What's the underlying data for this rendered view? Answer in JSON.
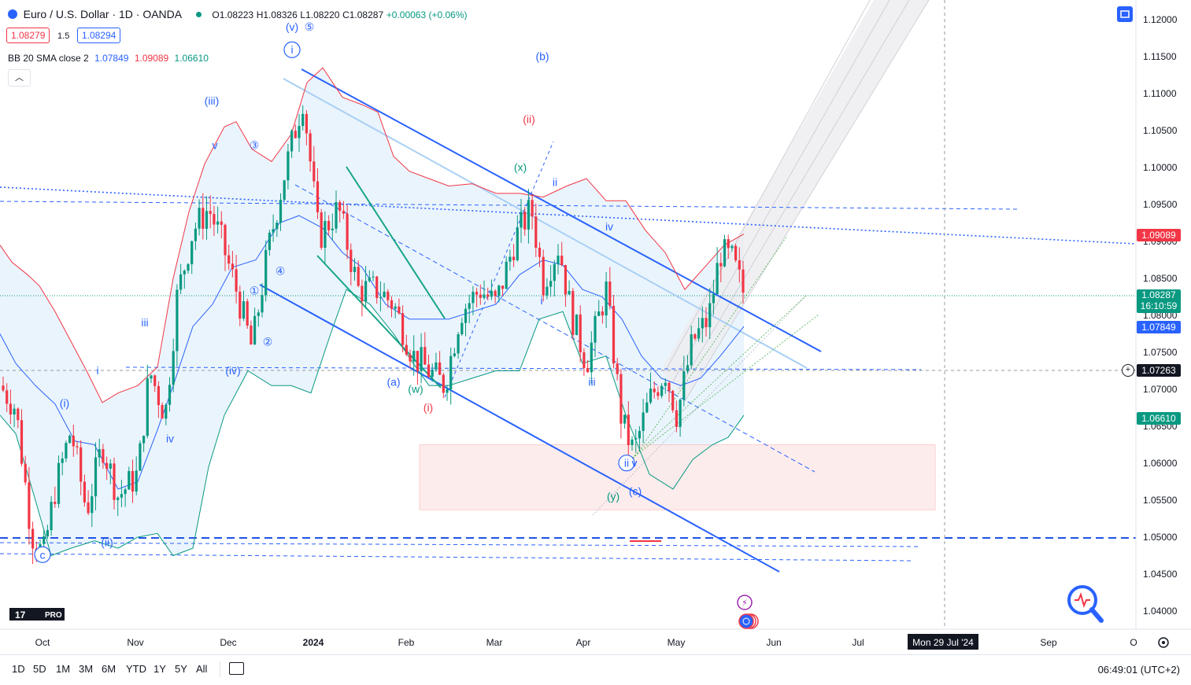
{
  "header": {
    "symbol": "Euro / U.S. Dollar · 1D · OANDA",
    "ohlc": {
      "o": "O1.08223",
      "h": "H1.08326",
      "l": "L1.08220",
      "c": "C1.08287",
      "chg": "+0.00063 (+0.06%)"
    },
    "bid": "1.08279",
    "spread": "1.5",
    "ask": "1.08294",
    "indicator": {
      "name": "BB 20 SMA close 2",
      "basis": "1.07849",
      "upper": "1.09089",
      "lower": "1.06610"
    }
  },
  "colors": {
    "up": "#089981",
    "down": "#f23645",
    "blue": "#2962ff",
    "bb_upper": "#f23645",
    "bb_basis": "#2962ff",
    "bb_lower": "#089981",
    "fill": "#e3f0fb"
  },
  "price_tags": {
    "upper": "1.09089",
    "last": "1.08287",
    "countdown": "16:10:59",
    "basis": "1.07849",
    "crosshair": "1.07263",
    "lower": "1.06610"
  },
  "time_axis": {
    "labels": [
      "Oct",
      "Nov",
      "Dec",
      "2024",
      "Feb",
      "Mar",
      "Apr",
      "May",
      "Jun",
      "Jul",
      "Sep",
      "O"
    ],
    "crosshair_label": "Mon 29 Jul '24"
  },
  "bottom_bar": {
    "timeframes": [
      "1D",
      "5D",
      "1M",
      "3M",
      "6M",
      "YTD",
      "1Y",
      "5Y",
      "All"
    ],
    "clock": "06:49:01 (UTC+2)"
  },
  "logo_text": "PRO",
  "chart_data": {
    "type": "line",
    "y_axis": {
      "ylim": [
        1.036,
        1.122
      ],
      "ticks": [
        "1.12000",
        "1.11500",
        "1.11000",
        "1.10500",
        "1.10000",
        "1.09500",
        "1.09000",
        "1.08500",
        "1.08000",
        "1.07500",
        "1.07000",
        "1.06500",
        "1.06000",
        "1.05500",
        "1.05000",
        "1.04500",
        "1.04000"
      ]
    },
    "series": [
      {
        "name": "BB upper",
        "color": "#f23645",
        "values": [
          [
            0,
            1.0895
          ],
          [
            15,
            1.0872
          ],
          [
            35,
            1.0855
          ],
          [
            50,
            1.084
          ],
          [
            70,
            1.0805
          ],
          [
            90,
            1.0765
          ],
          [
            110,
            1.0725
          ],
          [
            130,
            1.0682
          ],
          [
            150,
            1.0695
          ],
          [
            175,
            1.0705
          ],
          [
            200,
            1.073
          ],
          [
            220,
            1.085
          ],
          [
            240,
            1.094
          ],
          [
            260,
            1.1005
          ],
          [
            285,
            1.1055
          ],
          [
            300,
            1.1062
          ],
          [
            320,
            1.1025
          ],
          [
            345,
            1.1008
          ],
          [
            370,
            1.1045
          ],
          [
            390,
            1.1115
          ],
          [
            410,
            1.1135
          ],
          [
            435,
            1.1095
          ],
          [
            460,
            1.1085
          ],
          [
            480,
            1.1075
          ],
          [
            500,
            1.1015
          ],
          [
            520,
            1.0995
          ],
          [
            545,
            1.0985
          ],
          [
            570,
            1.0975
          ],
          [
            600,
            1.0978
          ],
          [
            630,
            1.0965
          ],
          [
            660,
            1.0965
          ],
          [
            690,
            1.096
          ],
          [
            720,
            1.0975
          ],
          [
            745,
            1.0985
          ],
          [
            770,
            1.0955
          ],
          [
            795,
            1.0955
          ],
          [
            820,
            1.0915
          ],
          [
            845,
            1.0885
          ],
          [
            870,
            1.0835
          ],
          [
            895,
            1.0865
          ],
          [
            920,
            1.0895
          ],
          [
            945,
            1.091
          ]
        ]
      },
      {
        "name": "BB basis",
        "color": "#2962ff",
        "values": [
          [
            0,
            1.0775
          ],
          [
            20,
            1.0735
          ],
          [
            45,
            1.0705
          ],
          [
            70,
            1.068
          ],
          [
            95,
            1.063
          ],
          [
            120,
            1.0625
          ],
          [
            150,
            1.0565
          ],
          [
            175,
            1.0575
          ],
          [
            200,
            1.0645
          ],
          [
            220,
            1.0705
          ],
          [
            245,
            1.0785
          ],
          [
            270,
            1.0815
          ],
          [
            295,
            1.0865
          ],
          [
            325,
            1.0875
          ],
          [
            355,
            1.0925
          ],
          [
            380,
            1.0935
          ],
          [
            410,
            1.0918
          ],
          [
            435,
            1.0885
          ],
          [
            460,
            1.0865
          ],
          [
            490,
            1.0815
          ],
          [
            520,
            1.0795
          ],
          [
            545,
            1.0795
          ],
          [
            570,
            1.0795
          ],
          [
            600,
            1.0805
          ],
          [
            630,
            1.0815
          ],
          [
            660,
            1.0855
          ],
          [
            690,
            1.0875
          ],
          [
            715,
            1.0868
          ],
          [
            740,
            1.0835
          ],
          [
            765,
            1.0825
          ],
          [
            790,
            1.0795
          ],
          [
            815,
            1.0745
          ],
          [
            840,
            1.0715
          ],
          [
            865,
            1.0705
          ],
          [
            890,
            1.0715
          ],
          [
            915,
            1.0745
          ],
          [
            945,
            1.0785
          ]
        ]
      },
      {
        "name": "BB lower",
        "color": "#089981",
        "values": [
          [
            0,
            1.0665
          ],
          [
            20,
            1.064
          ],
          [
            45,
            1.055
          ],
          [
            65,
            1.0475
          ],
          [
            90,
            1.0485
          ],
          [
            120,
            1.0495
          ],
          [
            150,
            1.0485
          ],
          [
            175,
            1.05
          ],
          [
            200,
            1.0505
          ],
          [
            220,
            1.0475
          ],
          [
            245,
            1.0485
          ],
          [
            265,
            1.0595
          ],
          [
            285,
            1.0665
          ],
          [
            315,
            1.0725
          ],
          [
            345,
            1.0705
          ],
          [
            370,
            1.0705
          ],
          [
            395,
            1.0695
          ],
          [
            420,
            1.0775
          ],
          [
            440,
            1.0835
          ],
          [
            470,
            1.0815
          ],
          [
            500,
            1.0775
          ],
          [
            525,
            1.0735
          ],
          [
            545,
            1.0705
          ],
          [
            570,
            1.0705
          ],
          [
            600,
            1.0715
          ],
          [
            630,
            1.0725
          ],
          [
            660,
            1.0725
          ],
          [
            685,
            1.0795
          ],
          [
            715,
            1.0805
          ],
          [
            740,
            1.0735
          ],
          [
            770,
            1.0745
          ],
          [
            795,
            1.0665
          ],
          [
            825,
            1.0585
          ],
          [
            855,
            1.0565
          ],
          [
            880,
            1.0605
          ],
          [
            905,
            1.0625
          ],
          [
            925,
            1.0635
          ],
          [
            945,
            1.0665
          ]
        ]
      },
      {
        "name": "Price",
        "color": "#131722",
        "values": [
          [
            0,
            1.0705
          ],
          [
            20,
            1.0675
          ],
          [
            40,
            1.0505
          ],
          [
            55,
            1.0475
          ],
          [
            70,
            1.0565
          ],
          [
            90,
            1.0645
          ],
          [
            110,
            1.0535
          ],
          [
            130,
            1.0625
          ],
          [
            150,
            1.0555
          ],
          [
            175,
            1.0585
          ],
          [
            190,
            1.0725
          ],
          [
            210,
            1.0665
          ],
          [
            225,
            1.0825
          ],
          [
            245,
            1.0915
          ],
          [
            265,
            1.0945
          ],
          [
            280,
            1.0905
          ],
          [
            300,
            1.0835
          ],
          [
            320,
            1.0755
          ],
          [
            340,
            1.0885
          ],
          [
            360,
            1.0985
          ],
          [
            385,
            1.1095
          ],
          [
            405,
            1.0905
          ],
          [
            430,
            1.0945
          ],
          [
            455,
            1.0835
          ],
          [
            480,
            1.0835
          ],
          [
            500,
            1.0815
          ],
          [
            525,
            1.0745
          ],
          [
            545,
            1.0725
          ],
          [
            565,
            1.0705
          ],
          [
            585,
            1.0805
          ],
          [
            610,
            1.0835
          ],
          [
            630,
            1.0815
          ],
          [
            655,
            1.0905
          ],
          [
            675,
            1.0945
          ],
          [
            690,
            1.0845
          ],
          [
            710,
            1.0895
          ],
          [
            725,
            1.0805
          ],
          [
            745,
            1.0735
          ],
          [
            770,
            1.0835
          ],
          [
            790,
            1.0655
          ],
          [
            805,
            1.0615
          ],
          [
            825,
            1.0685
          ],
          [
            845,
            1.0725
          ],
          [
            860,
            1.0665
          ],
          [
            880,
            1.0765
          ],
          [
            900,
            1.0795
          ],
          [
            915,
            1.0885
          ],
          [
            930,
            1.0875
          ],
          [
            945,
            1.0829
          ]
        ]
      }
    ],
    "wave_labels": [
      {
        "text": "(v)",
        "x": 371,
        "y": 1.1185,
        "color": "blue"
      },
      {
        "text": "⑤",
        "x": 393,
        "y": 1.1185,
        "color": "blue"
      },
      {
        "text": "i",
        "x": 371,
        "y": 1.1154,
        "color": "blue",
        "circle": true
      },
      {
        "text": "(iii)",
        "x": 269,
        "y": 1.1085,
        "color": "blue"
      },
      {
        "text": "v",
        "x": 273,
        "y": 1.1025,
        "color": "blue"
      },
      {
        "text": "③",
        "x": 323,
        "y": 1.1025,
        "color": "blue"
      },
      {
        "text": "④",
        "x": 356,
        "y": 1.0855,
        "color": "blue"
      },
      {
        "text": "①",
        "x": 323,
        "y": 1.0828,
        "color": "blue"
      },
      {
        "text": "②",
        "x": 340,
        "y": 1.0759,
        "color": "blue"
      },
      {
        "text": "iii",
        "x": 184,
        "y": 1.0785,
        "color": "blue"
      },
      {
        "text": "i",
        "x": 124,
        "y": 1.072,
        "color": "blue"
      },
      {
        "text": "(iv)",
        "x": 296,
        "y": 1.072,
        "color": "blue"
      },
      {
        "text": "(i)",
        "x": 82,
        "y": 1.0676,
        "color": "blue"
      },
      {
        "text": "iv",
        "x": 216,
        "y": 1.0628,
        "color": "blue"
      },
      {
        "text": "(ii)",
        "x": 136,
        "y": 1.0488,
        "color": "blue"
      },
      {
        "text": "c",
        "x": 54,
        "y": 1.0471,
        "color": "blue",
        "circle": true
      },
      {
        "text": "(b)",
        "x": 689,
        "y": 1.1145,
        "color": "blue"
      },
      {
        "text": "(ii)",
        "x": 672,
        "y": 1.106,
        "color": "red"
      },
      {
        "text": "(x)",
        "x": 661,
        "y": 1.0995,
        "color": "green"
      },
      {
        "text": "ii",
        "x": 705,
        "y": 1.0975,
        "color": "blue"
      },
      {
        "text": "iv",
        "x": 774,
        "y": 1.0915,
        "color": "blue"
      },
      {
        "text": "i",
        "x": 688,
        "y": 1.0815,
        "color": "blue"
      },
      {
        "text": "(a)",
        "x": 500,
        "y": 1.0705,
        "color": "blue"
      },
      {
        "text": "(w)",
        "x": 528,
        "y": 1.0695,
        "color": "green"
      },
      {
        "text": "(i)",
        "x": 544,
        "y": 1.067,
        "color": "red"
      },
      {
        "text": "iii",
        "x": 752,
        "y": 1.0705,
        "color": "blue"
      },
      {
        "text": "ii",
        "x": 796,
        "y": 1.0595,
        "color": "blue",
        "circle": true
      },
      {
        "text": "v",
        "x": 806,
        "y": 1.0595,
        "color": "blue"
      },
      {
        "text": "(y)",
        "x": 779,
        "y": 1.055,
        "color": "green"
      },
      {
        "text": "(c)",
        "x": 807,
        "y": 1.0557,
        "color": "blue"
      }
    ]
  }
}
